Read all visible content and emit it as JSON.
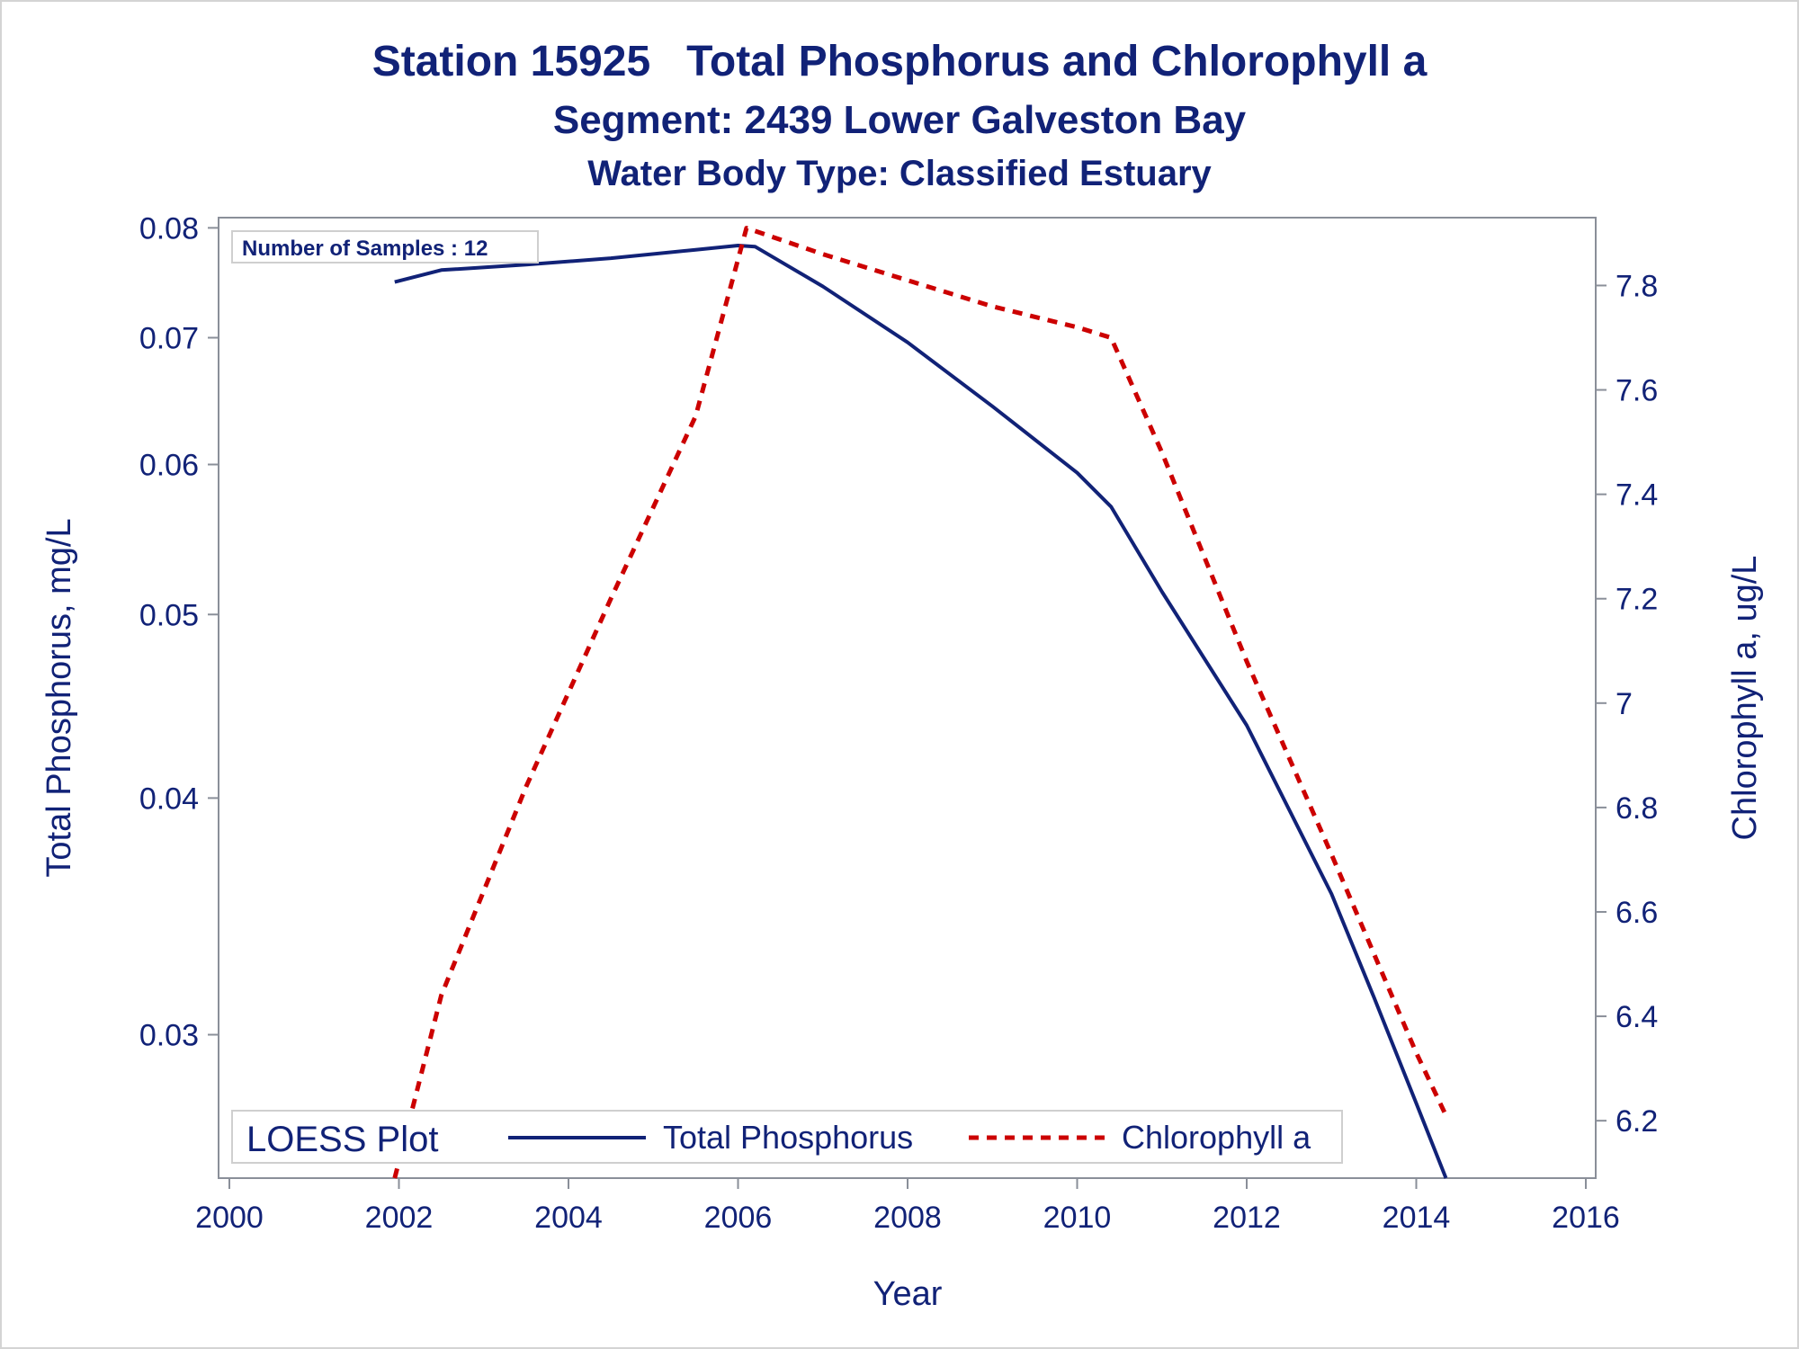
{
  "chart_data": {
    "type": "line",
    "title": "Station 15925   Total Phosphorus and Chlorophyll a",
    "subtitle": "Segment: 2439  Lower Galveston Bay",
    "subtitle2": "Water Body Type: Classified Estuary",
    "xlabel": "Year",
    "ylabel_left": "Total Phosphorus, mg/L",
    "ylabel_right": "Chlorophyll a, ug/L",
    "annotation": "Number of Samples : 12",
    "xlim": [
      2000,
      2016
    ],
    "x_ticks": [
      "2000",
      "2002",
      "2004",
      "2006",
      "2008",
      "2010",
      "2012",
      "2014",
      "2016"
    ],
    "y_left_scale": "log",
    "y_left_lim": [
      0.0252,
      0.081
    ],
    "y_left_ticks": [
      "0.03",
      "0.04",
      "0.05",
      "0.06",
      "0.07",
      "0.08"
    ],
    "y_right_lim": [
      6.09,
      7.93
    ],
    "y_right_ticks": [
      "6.2",
      "6.4",
      "6.6",
      "6.8",
      "7",
      "7.2",
      "7.4",
      "7.6",
      "7.8"
    ],
    "grid": false,
    "legend": {
      "title": "LOESS Plot",
      "placement": "bottom-left",
      "entries": [
        "Total Phosphorus",
        "Chlorophyll a"
      ]
    },
    "series": [
      {
        "name": "Total Phosphorus",
        "axis": "left",
        "color": "#112277",
        "style": "solid",
        "x": [
          2001.95,
          2002.5,
          2003.5,
          2004.5,
          2005.5,
          2006.0,
          2006.2,
          2007.0,
          2008.0,
          2009.0,
          2010.0,
          2010.4,
          2011.0,
          2012.0,
          2013.0,
          2013.5,
          2014.0,
          2014.35
        ],
        "y": [
          0.0749,
          0.076,
          0.0765,
          0.0771,
          0.0779,
          0.0783,
          0.0782,
          0.0745,
          0.0696,
          0.0644,
          0.0594,
          0.057,
          0.0514,
          0.0437,
          0.0356,
          0.0314,
          0.0276,
          0.0252
        ]
      },
      {
        "name": "Chlorophyll a",
        "axis": "right",
        "color": "#cc0000",
        "style": "dashed",
        "x": [
          2001.95,
          2002.5,
          2003.5,
          2004.5,
          2005.5,
          2006.1,
          2007.0,
          2008.0,
          2009.0,
          2010.0,
          2010.4,
          2011.0,
          2012.0,
          2013.0,
          2014.0,
          2014.35
        ],
        "y": [
          6.09,
          6.44,
          6.84,
          7.2,
          7.55,
          7.91,
          7.86,
          7.81,
          7.76,
          7.72,
          7.7,
          7.48,
          7.08,
          6.71,
          6.33,
          6.21
        ]
      }
    ]
  }
}
